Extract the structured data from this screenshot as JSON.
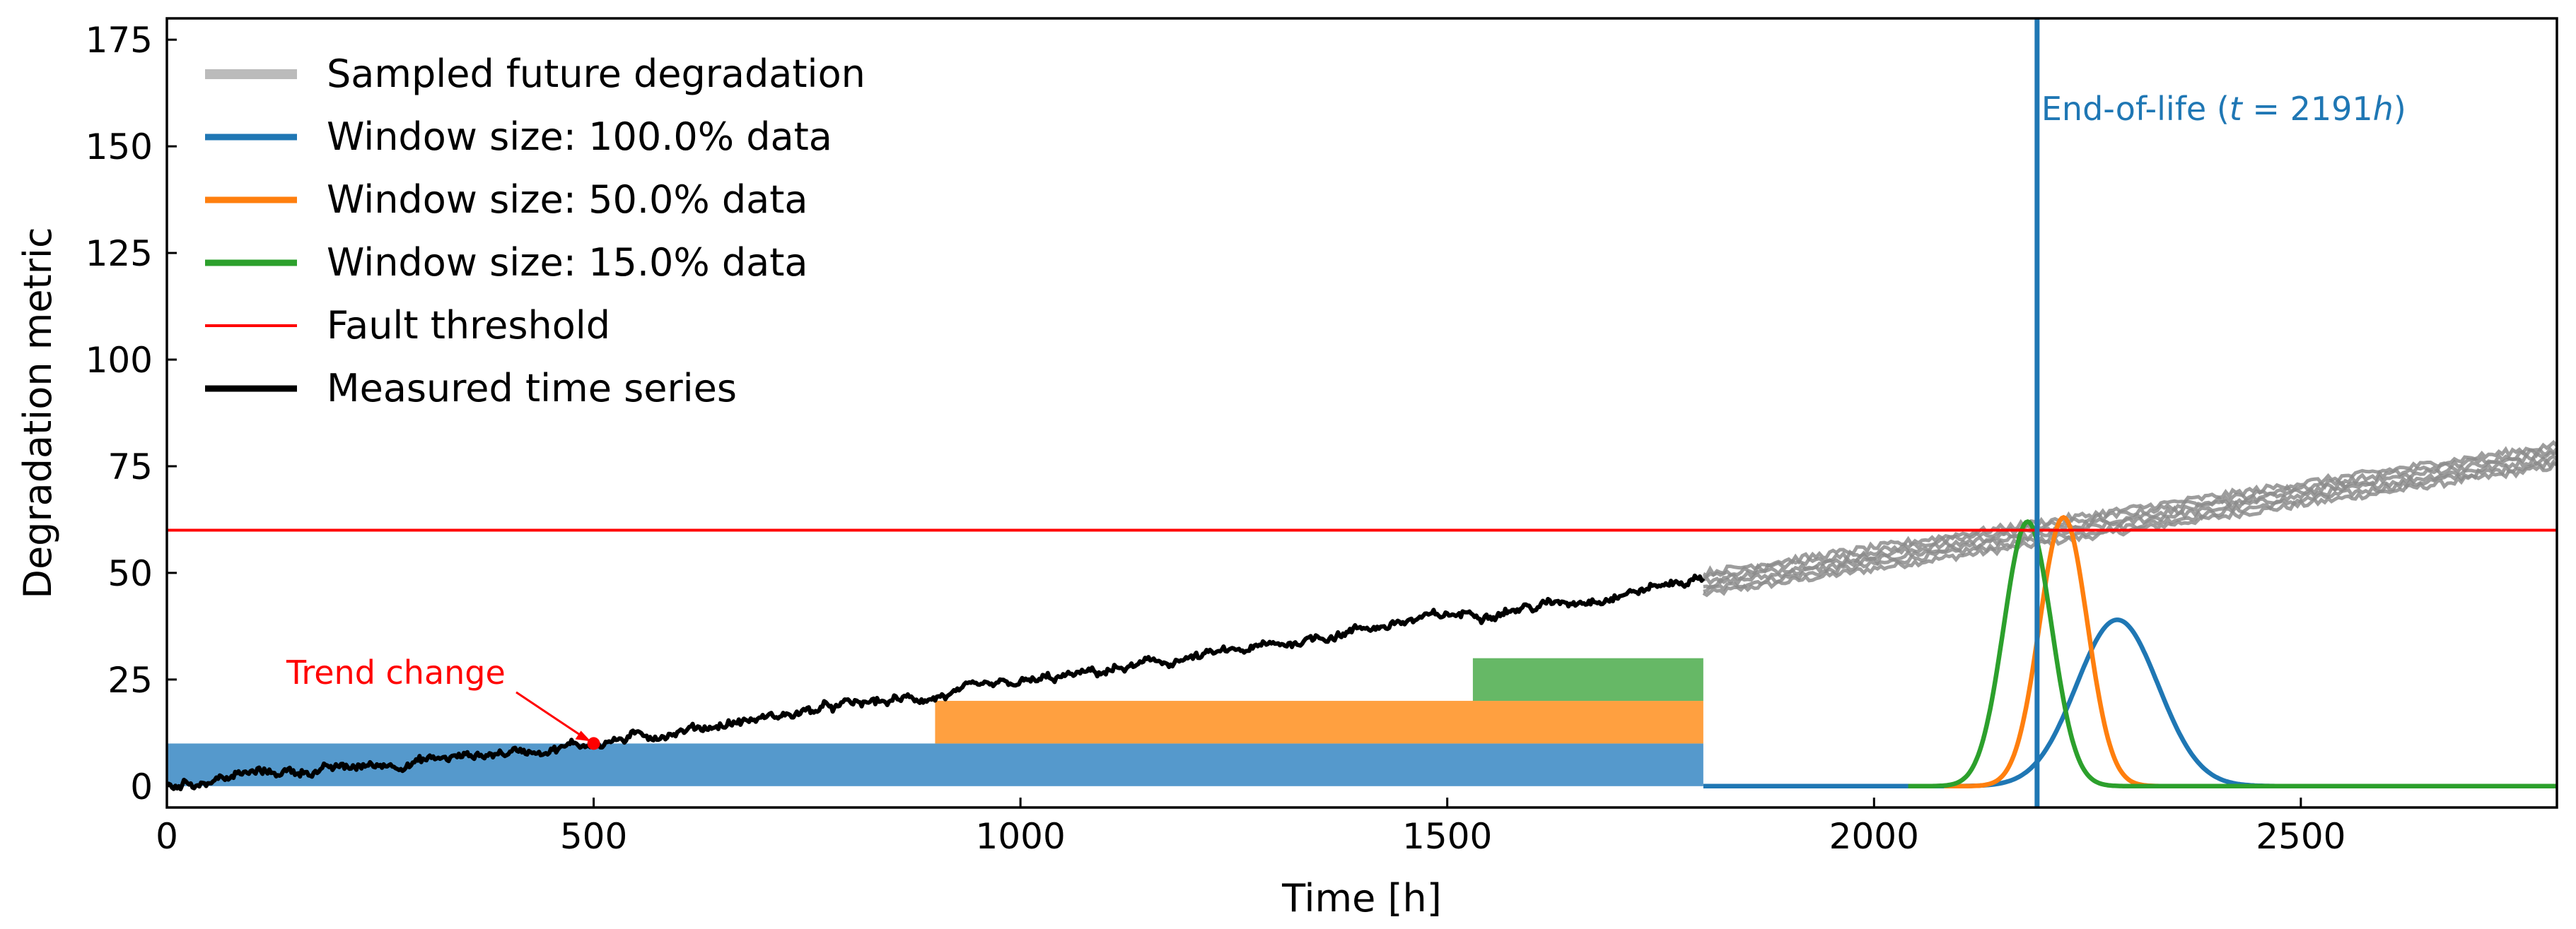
{
  "chart_data": {
    "type": "line",
    "xlabel": "Time [h]",
    "ylabel": "Degradation metric",
    "xlim": [
      0,
      2800
    ],
    "ylim": [
      -5,
      180
    ],
    "xticks": [
      0,
      500,
      1000,
      1500,
      2000,
      2500
    ],
    "yticks": [
      0,
      25,
      50,
      75,
      100,
      125,
      150,
      175
    ],
    "grid": false,
    "legend_position": "upper-left",
    "legend": [
      {
        "label": "Sampled future degradation",
        "color": "#bbbbbb",
        "style": "thick"
      },
      {
        "label": "Window size: 100.0% data",
        "color": "#1f77b4",
        "style": "line"
      },
      {
        "label": "Window size: 50.0% data",
        "color": "#ff7f0e",
        "style": "line"
      },
      {
        "label": "Window size: 15.0% data",
        "color": "#2ca02c",
        "style": "line"
      },
      {
        "label": "Fault threshold",
        "color": "#ff0000",
        "style": "thin"
      },
      {
        "label": "Measured time series",
        "color": "#000000",
        "style": "line"
      }
    ],
    "measured_series": {
      "color": "#000000",
      "x": [
        0,
        100,
        200,
        300,
        400,
        500,
        600,
        700,
        800,
        900,
        1000,
        1100,
        1200,
        1300,
        1400,
        1500,
        1600,
        1700,
        1800
      ],
      "y": [
        0,
        3,
        4,
        6,
        8,
        10,
        13,
        16,
        19,
        21,
        24,
        27,
        30,
        33,
        37,
        40,
        42,
        45,
        49
      ]
    },
    "sampled_future": {
      "color": "#8c8c8c",
      "x": [
        1800,
        2800
      ],
      "y_center": [
        47.5,
        77.5
      ],
      "spread": 2.5
    },
    "fault_threshold": {
      "y": 60,
      "color": "#ff0000"
    },
    "end_of_life": {
      "x": 2191,
      "color": "#1f77b4",
      "label_prefix": "End-of-life (",
      "label_var": "t",
      "label_eq": " = 2191",
      "label_unit": "h",
      "label_suffix": ")"
    },
    "trend_change": {
      "x": 500,
      "y": 10,
      "label": "Trend change",
      "color": "#ff0000",
      "label_x": 140,
      "label_y": 24
    },
    "windows": [
      {
        "name": "Window size: 100.0% data",
        "x_start": 0,
        "x_end": 1800,
        "y_bottom": 0,
        "y_top": 10,
        "color": "#5599cc"
      },
      {
        "name": "Window size: 50.0% data",
        "x_start": 900,
        "x_end": 1800,
        "y_bottom": 10,
        "y_top": 20,
        "color": "#ffa040"
      },
      {
        "name": "Window size: 15.0% data",
        "x_start": 1530,
        "x_end": 1800,
        "y_bottom": 20,
        "y_top": 30,
        "color": "#66b866"
      }
    ],
    "distributions": [
      {
        "name": "Window size: 100.0% data",
        "color": "#1f77b4",
        "mean": 2285,
        "sigma": 48,
        "peak": 39
      },
      {
        "name": "Window size: 50.0% data",
        "color": "#ff7f0e",
        "mean": 2222,
        "sigma": 28,
        "peak": 63
      },
      {
        "name": "Window size: 15.0% data",
        "color": "#2ca02c",
        "mean": 2180,
        "sigma": 28,
        "peak": 62
      }
    ]
  }
}
